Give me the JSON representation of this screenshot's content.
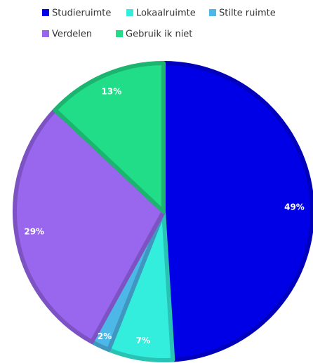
{
  "chart_data": {
    "type": "pie",
    "categories": [
      "Studieruimte",
      "Lokaalruimte",
      "Stilte ruimte",
      "Verdelen",
      "Gebruik ik niet"
    ],
    "values": [
      49,
      7,
      2,
      29,
      13
    ],
    "value_labels": [
      "49%",
      "7%",
      "2%",
      "29%",
      "13%"
    ],
    "colors": [
      "#0000e6",
      "#33eedd",
      "#4db8e8",
      "#9966ee",
      "#22dd88"
    ],
    "legend": "top"
  }
}
